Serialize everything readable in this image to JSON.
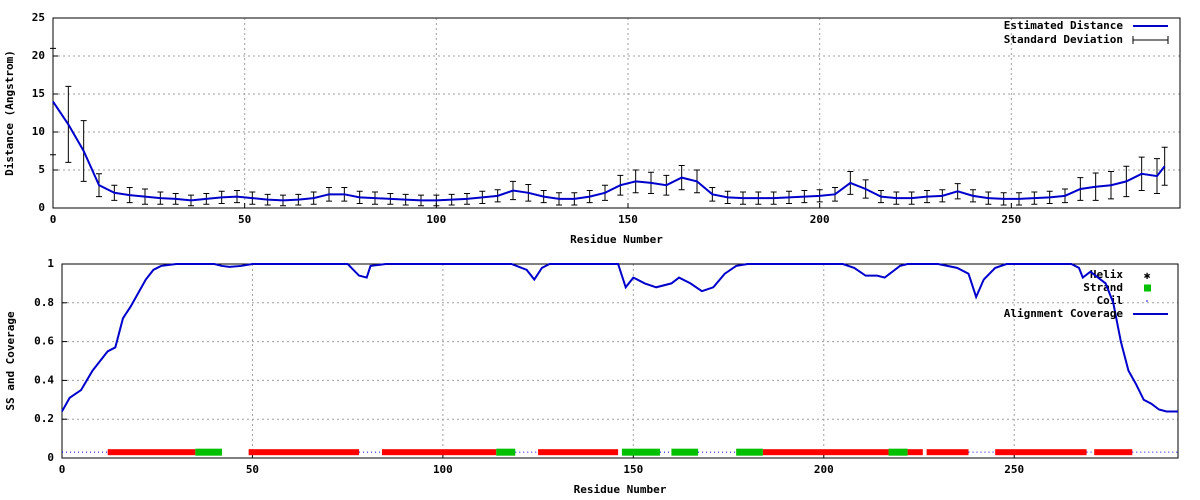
{
  "chart_data": [
    {
      "type": "errorbar",
      "xlabel": "Residue Number",
      "ylabel": "Distance (Angstrom)",
      "xlim": [
        0,
        294
      ],
      "ylim": [
        0,
        25
      ],
      "xticks": [
        0,
        50,
        100,
        150,
        200,
        250
      ],
      "yticks": [
        0,
        5,
        10,
        15,
        20,
        25
      ],
      "grid": true,
      "x": [
        0,
        4,
        8,
        12,
        16,
        20,
        24,
        28,
        32,
        36,
        40,
        44,
        48,
        52,
        56,
        60,
        64,
        68,
        72,
        76,
        80,
        84,
        88,
        92,
        96,
        100,
        104,
        108,
        112,
        116,
        120,
        124,
        128,
        132,
        136,
        140,
        144,
        148,
        152,
        156,
        160,
        164,
        168,
        172,
        176,
        180,
        184,
        188,
        192,
        196,
        200,
        204,
        208,
        212,
        216,
        220,
        224,
        228,
        232,
        236,
        240,
        244,
        248,
        252,
        256,
        260,
        264,
        268,
        272,
        276,
        280,
        284,
        288,
        290
      ],
      "series": [
        {
          "name": "Estimated Distance",
          "color": "#0000cc",
          "values": [
            14,
            11,
            7.5,
            3,
            2,
            1.7,
            1.5,
            1.3,
            1.2,
            1.0,
            1.2,
            1.4,
            1.5,
            1.3,
            1.1,
            1.0,
            1.1,
            1.3,
            1.8,
            1.8,
            1.4,
            1.3,
            1.2,
            1.1,
            1.0,
            1.0,
            1.1,
            1.2,
            1.4,
            1.6,
            2.3,
            2.0,
            1.5,
            1.2,
            1.2,
            1.5,
            2.0,
            3.0,
            3.5,
            3.3,
            3.0,
            4.0,
            3.5,
            1.8,
            1.4,
            1.3,
            1.3,
            1.3,
            1.4,
            1.5,
            1.6,
            1.8,
            3.3,
            2.5,
            1.5,
            1.3,
            1.3,
            1.5,
            1.6,
            2.2,
            1.6,
            1.3,
            1.2,
            1.2,
            1.3,
            1.4,
            1.6,
            2.5,
            2.8,
            3.0,
            3.5,
            4.5,
            4.2,
            5.5
          ]
        }
      ],
      "error_series": {
        "name": "Standard Deviation",
        "color": "#000000",
        "errors": [
          7,
          5,
          4,
          1.5,
          1,
          1,
          1,
          0.8,
          0.7,
          0.7,
          0.7,
          0.8,
          0.8,
          0.8,
          0.7,
          0.7,
          0.7,
          0.8,
          0.9,
          0.9,
          0.8,
          0.8,
          0.7,
          0.7,
          0.7,
          0.7,
          0.7,
          0.7,
          0.8,
          0.8,
          1.2,
          1.1,
          0.8,
          0.8,
          0.8,
          0.8,
          1.0,
          1.3,
          1.5,
          1.4,
          1.3,
          1.6,
          1.5,
          0.9,
          0.8,
          0.8,
          0.8,
          0.8,
          0.8,
          0.8,
          0.8,
          0.9,
          1.5,
          1.2,
          0.8,
          0.8,
          0.8,
          0.8,
          0.8,
          1.0,
          0.8,
          0.8,
          0.8,
          0.8,
          0.8,
          0.8,
          0.9,
          1.5,
          1.8,
          1.8,
          2,
          2.2,
          2.3,
          2.5
        ]
      }
    },
    {
      "type": "coverage",
      "xlabel": "Residue Number",
      "ylabel": "SS and Coverage",
      "xlim": [
        0,
        293
      ],
      "ylim": [
        0,
        1
      ],
      "xticks": [
        0,
        50,
        100,
        150,
        200,
        250
      ],
      "yticks": [
        0,
        {
          "value": 0.2,
          "label": "0.2"
        },
        {
          "value": 0.4,
          "label": "0.4"
        },
        {
          "value": 0.6,
          "label": "0.6"
        },
        {
          "value": 0.8,
          "label": "0.8"
        },
        1
      ],
      "grid": true,
      "ss_level": 0.03,
      "segments": [
        {
          "name": "Helix",
          "color": "#ff0000",
          "ranges": [
            [
              12,
              35
            ],
            [
              49,
              78
            ],
            [
              84,
              114
            ],
            [
              125,
              146
            ],
            [
              184,
              217
            ],
            [
              222,
              226
            ],
            [
              227,
              238
            ],
            [
              245,
              269
            ],
            [
              271,
              281
            ]
          ]
        },
        {
          "name": "Strand",
          "color": "#00c000",
          "ranges": [
            [
              35,
              42
            ],
            [
              114,
              119
            ],
            [
              147,
              157
            ],
            [
              160,
              167
            ],
            [
              177,
              184
            ],
            [
              217,
              222
            ]
          ]
        },
        {
          "name": "Coil",
          "color": "#0000ff",
          "ranges": [
            [
              0,
              12
            ],
            [
              78,
              84
            ],
            [
              119,
              125
            ],
            [
              157,
              160
            ],
            [
              167,
              177
            ],
            [
              238,
              245
            ],
            [
              269,
              271
            ],
            [
              281,
              293
            ]
          ]
        }
      ],
      "series": [
        {
          "name": "Alignment Coverage",
          "color": "#0000cc",
          "x": [
            0,
            2,
            5,
            8,
            10,
            12,
            14,
            16,
            18,
            20,
            22,
            24,
            26,
            30,
            40,
            42,
            44,
            47,
            50,
            75,
            78,
            80,
            81,
            85,
            118,
            122,
            124,
            126,
            128,
            146,
            148,
            150,
            153,
            156,
            160,
            162,
            165,
            168,
            171,
            174,
            177,
            180,
            205,
            208,
            211,
            214,
            216,
            218,
            220,
            222,
            230,
            235,
            238,
            240,
            242,
            245,
            248,
            265,
            267,
            268,
            270,
            272,
            274,
            276,
            278,
            280,
            282,
            284,
            286,
            288,
            290,
            293
          ],
          "values": [
            0.24,
            0.31,
            0.35,
            0.45,
            0.5,
            0.55,
            0.57,
            0.72,
            0.78,
            0.85,
            0.92,
            0.97,
            0.99,
            1,
            1,
            0.99,
            0.985,
            0.99,
            1,
            1,
            0.94,
            0.93,
            0.99,
            1,
            1,
            0.97,
            0.92,
            0.98,
            1,
            1,
            0.88,
            0.93,
            0.9,
            0.88,
            0.9,
            0.93,
            0.9,
            0.86,
            0.88,
            0.95,
            0.99,
            1,
            1,
            0.98,
            0.94,
            0.94,
            0.93,
            0.96,
            0.99,
            1,
            1,
            0.98,
            0.95,
            0.83,
            0.92,
            0.98,
            1,
            1,
            0.98,
            0.93,
            0.96,
            0.93,
            0.9,
            0.8,
            0.6,
            0.45,
            0.38,
            0.3,
            0.28,
            0.25,
            0.24,
            0.24
          ]
        }
      ]
    }
  ]
}
